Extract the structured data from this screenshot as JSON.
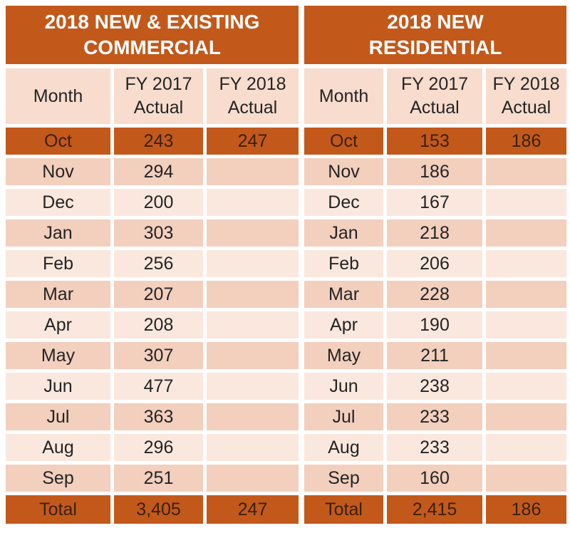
{
  "colors": {
    "orange": "#C2591B",
    "band_dark": "#F3CFBE",
    "band_light": "#FAE8DE",
    "header_pink": "#F8DCCE",
    "title_text": "#FFFFFF",
    "text_dark": "#242424",
    "text_on_orange": "#3A1F08"
  },
  "tables": [
    {
      "title_line1": "2018 NEW & EXISTING",
      "title_line2": "COMMERCIAL",
      "headers": {
        "month": "Month",
        "fy2017_line1": "FY 2017",
        "fy2017_line2": "Actual",
        "fy2018_line1": "FY 2018",
        "fy2018_line2": "Actual"
      },
      "rows": [
        [
          "Oct",
          "243",
          "247"
        ],
        [
          "Nov",
          "294",
          ""
        ],
        [
          "Dec",
          "200",
          ""
        ],
        [
          "Jan",
          "303",
          ""
        ],
        [
          "Feb",
          "256",
          ""
        ],
        [
          "Mar",
          "207",
          ""
        ],
        [
          "Apr",
          "208",
          ""
        ],
        [
          "May",
          "307",
          ""
        ],
        [
          "Jun",
          "477",
          ""
        ],
        [
          "Jul",
          "363",
          ""
        ],
        [
          "Aug",
          "296",
          ""
        ],
        [
          "Sep",
          "251",
          ""
        ]
      ],
      "total": [
        "Total",
        "3,405",
        "247"
      ]
    },
    {
      "title_line1": "2018 NEW",
      "title_line2": "RESIDENTIAL",
      "headers": {
        "month": "Month",
        "fy2017_line1": "FY 2017",
        "fy2017_line2": "Actual",
        "fy2018_line1": "FY 2018",
        "fy2018_line2": "Actual"
      },
      "rows": [
        [
          "Oct",
          "153",
          "186"
        ],
        [
          "Nov",
          "186",
          ""
        ],
        [
          "Dec",
          "167",
          ""
        ],
        [
          "Jan",
          "218",
          ""
        ],
        [
          "Feb",
          "206",
          ""
        ],
        [
          "Mar",
          "228",
          ""
        ],
        [
          "Apr",
          "190",
          ""
        ],
        [
          "May",
          "211",
          ""
        ],
        [
          "Jun",
          "238",
          ""
        ],
        [
          "Jul",
          "233",
          ""
        ],
        [
          "Aug",
          "233",
          ""
        ],
        [
          "Sep",
          "160",
          ""
        ]
      ],
      "total": [
        "Total",
        "2,415",
        "186"
      ]
    }
  ],
  "chart_data": [
    {
      "type": "table",
      "title": "2018 NEW & EXISTING COMMERCIAL",
      "columns": [
        "Month",
        "FY 2017 Actual",
        "FY 2018 Actual"
      ],
      "rows": [
        [
          "Oct",
          243,
          247
        ],
        [
          "Nov",
          294,
          null
        ],
        [
          "Dec",
          200,
          null
        ],
        [
          "Jan",
          303,
          null
        ],
        [
          "Feb",
          256,
          null
        ],
        [
          "Mar",
          207,
          null
        ],
        [
          "Apr",
          208,
          null
        ],
        [
          "May",
          307,
          null
        ],
        [
          "Jun",
          477,
          null
        ],
        [
          "Jul",
          363,
          null
        ],
        [
          "Aug",
          296,
          null
        ],
        [
          "Sep",
          251,
          null
        ],
        [
          "Total",
          3405,
          247
        ]
      ]
    },
    {
      "type": "table",
      "title": "2018 NEW RESIDENTIAL",
      "columns": [
        "Month",
        "FY 2017 Actual",
        "FY 2018 Actual"
      ],
      "rows": [
        [
          "Oct",
          153,
          186
        ],
        [
          "Nov",
          186,
          null
        ],
        [
          "Dec",
          167,
          null
        ],
        [
          "Jan",
          218,
          null
        ],
        [
          "Feb",
          206,
          null
        ],
        [
          "Mar",
          228,
          null
        ],
        [
          "Apr",
          190,
          null
        ],
        [
          "May",
          211,
          null
        ],
        [
          "Jun",
          238,
          null
        ],
        [
          "Jul",
          233,
          null
        ],
        [
          "Aug",
          233,
          null
        ],
        [
          "Sep",
          160,
          null
        ],
        [
          "Total",
          2415,
          186
        ]
      ]
    }
  ]
}
